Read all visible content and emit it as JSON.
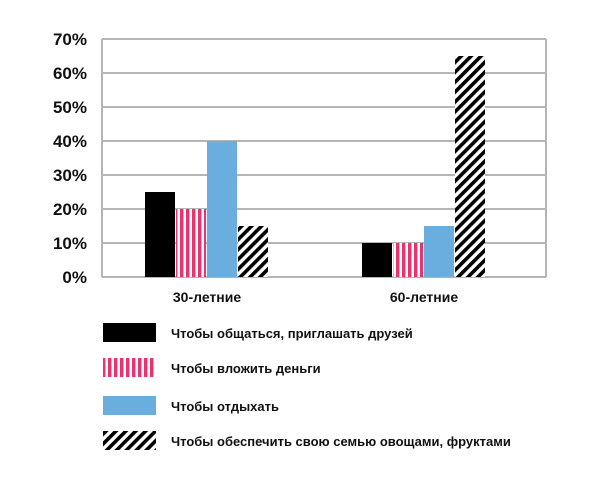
{
  "chart_data": {
    "type": "bar",
    "title": "",
    "xlabel": "",
    "ylabel": "",
    "categories": [
      "30-летние",
      "60-летние"
    ],
    "ylim": [
      0,
      70
    ],
    "yticks": [
      "0%",
      "10%",
      "20%",
      "30%",
      "40%",
      "50%",
      "60%",
      "70%"
    ],
    "grid": true,
    "legend_position": "bottom",
    "series": [
      {
        "name": "Чтобы общаться, приглашать друзей",
        "values": [
          25,
          10
        ],
        "color": "#000000",
        "pattern": "solid"
      },
      {
        "name": "Чтобы вложить деньги",
        "values": [
          20,
          10
        ],
        "color": "#e8336e",
        "pattern": "vertical-stripes"
      },
      {
        "name": "Чтобы отдыхать",
        "values": [
          40,
          15
        ],
        "color": "#6aaee0",
        "pattern": "solid"
      },
      {
        "name": "Чтобы обеспечить свою семью овощами, фруктами",
        "values": [
          15,
          65
        ],
        "color": "#000000",
        "pattern": "diagonal-stripes"
      }
    ]
  }
}
